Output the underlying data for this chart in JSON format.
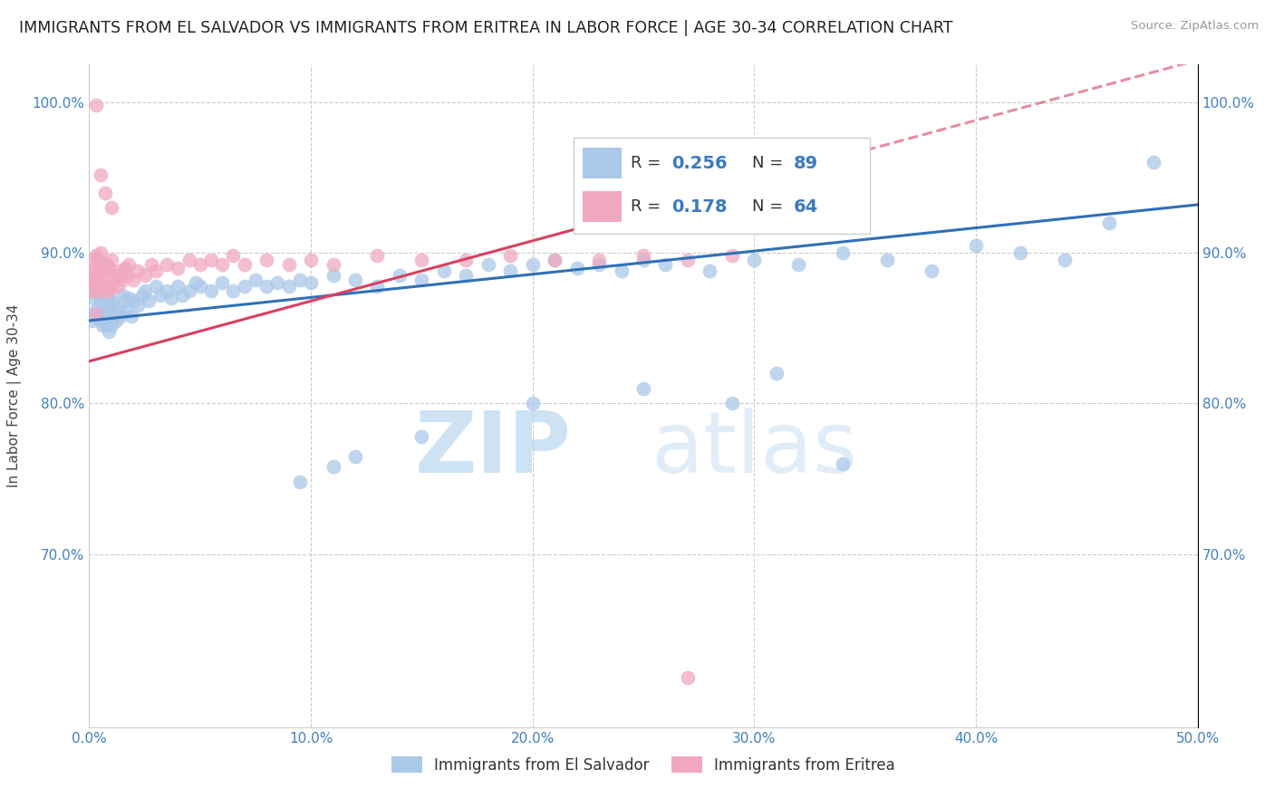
{
  "title": "IMMIGRANTS FROM EL SALVADOR VS IMMIGRANTS FROM ERITREA IN LABOR FORCE | AGE 30-34 CORRELATION CHART",
  "source": "Source: ZipAtlas.com",
  "ylabel": "In Labor Force | Age 30-34",
  "watermark_zip": "ZIP",
  "watermark_atlas": "atlas",
  "xmin": 0.0,
  "xmax": 0.5,
  "ymin": 0.585,
  "ymax": 1.025,
  "xticks": [
    0.0,
    0.1,
    0.2,
    0.3,
    0.4,
    0.5
  ],
  "xticklabels": [
    "0.0%",
    "10.0%",
    "20.0%",
    "30.0%",
    "40.0%",
    "50.0%"
  ],
  "yticks": [
    0.7,
    0.8,
    0.9,
    1.0
  ],
  "yticklabels": [
    "70.0%",
    "80.0%",
    "90.0%",
    "100.0%"
  ],
  "legend_entries": [
    {
      "label": "Immigrants from El Salvador",
      "R": "0.256",
      "N": "89",
      "color": "#aac8e8",
      "line_color": "#3070b8"
    },
    {
      "label": "Immigrants from Eritrea",
      "R": "0.178",
      "N": "64",
      "color": "#f0a8c0",
      "line_color": "#d84060"
    }
  ],
  "sal_x": [
    0.001,
    0.002,
    0.002,
    0.003,
    0.003,
    0.004,
    0.004,
    0.005,
    0.005,
    0.006,
    0.006,
    0.007,
    0.007,
    0.008,
    0.008,
    0.009,
    0.009,
    0.01,
    0.01,
    0.011,
    0.011,
    0.012,
    0.013,
    0.014,
    0.015,
    0.016,
    0.017,
    0.018,
    0.019,
    0.02,
    0.022,
    0.024,
    0.025,
    0.027,
    0.03,
    0.032,
    0.035,
    0.037,
    0.04,
    0.042,
    0.045,
    0.048,
    0.05,
    0.055,
    0.06,
    0.065,
    0.07,
    0.075,
    0.08,
    0.085,
    0.09,
    0.095,
    0.1,
    0.11,
    0.12,
    0.13,
    0.14,
    0.15,
    0.16,
    0.17,
    0.18,
    0.19,
    0.2,
    0.21,
    0.22,
    0.23,
    0.24,
    0.25,
    0.26,
    0.28,
    0.3,
    0.32,
    0.34,
    0.36,
    0.38,
    0.4,
    0.42,
    0.44,
    0.46,
    0.34,
    0.29,
    0.31,
    0.25,
    0.2,
    0.15,
    0.12,
    0.11,
    0.095,
    0.48
  ],
  "sal_y": [
    0.855,
    0.858,
    0.87,
    0.862,
    0.875,
    0.86,
    0.878,
    0.855,
    0.868,
    0.852,
    0.872,
    0.858,
    0.865,
    0.852,
    0.87,
    0.848,
    0.862,
    0.852,
    0.868,
    0.858,
    0.865,
    0.855,
    0.862,
    0.858,
    0.872,
    0.868,
    0.862,
    0.87,
    0.858,
    0.868,
    0.865,
    0.872,
    0.875,
    0.868,
    0.878,
    0.872,
    0.875,
    0.87,
    0.878,
    0.872,
    0.875,
    0.88,
    0.878,
    0.875,
    0.88,
    0.875,
    0.878,
    0.882,
    0.878,
    0.88,
    0.878,
    0.882,
    0.88,
    0.885,
    0.882,
    0.878,
    0.885,
    0.882,
    0.888,
    0.885,
    0.892,
    0.888,
    0.892,
    0.895,
    0.89,
    0.892,
    0.888,
    0.895,
    0.892,
    0.888,
    0.895,
    0.892,
    0.9,
    0.895,
    0.888,
    0.905,
    0.9,
    0.895,
    0.92,
    0.76,
    0.8,
    0.82,
    0.81,
    0.8,
    0.778,
    0.765,
    0.758,
    0.748,
    0.96
  ],
  "eri_x": [
    0.001,
    0.001,
    0.002,
    0.002,
    0.002,
    0.003,
    0.003,
    0.003,
    0.004,
    0.004,
    0.004,
    0.005,
    0.005,
    0.005,
    0.006,
    0.006,
    0.007,
    0.007,
    0.008,
    0.008,
    0.009,
    0.009,
    0.01,
    0.01,
    0.011,
    0.012,
    0.013,
    0.014,
    0.015,
    0.016,
    0.017,
    0.018,
    0.02,
    0.022,
    0.025,
    0.028,
    0.03,
    0.035,
    0.04,
    0.045,
    0.05,
    0.055,
    0.06,
    0.065,
    0.07,
    0.08,
    0.09,
    0.1,
    0.11,
    0.13,
    0.15,
    0.17,
    0.19,
    0.21,
    0.23,
    0.25,
    0.27,
    0.29,
    0.01,
    0.007,
    0.005,
    0.003,
    0.003,
    0.27
  ],
  "eri_y": [
    0.875,
    0.882,
    0.878,
    0.888,
    0.895,
    0.882,
    0.89,
    0.898,
    0.875,
    0.885,
    0.895,
    0.878,
    0.888,
    0.9,
    0.882,
    0.892,
    0.875,
    0.888,
    0.878,
    0.892,
    0.875,
    0.89,
    0.878,
    0.895,
    0.882,
    0.885,
    0.878,
    0.888,
    0.882,
    0.89,
    0.885,
    0.892,
    0.882,
    0.888,
    0.885,
    0.892,
    0.888,
    0.892,
    0.89,
    0.895,
    0.892,
    0.895,
    0.892,
    0.898,
    0.892,
    0.895,
    0.892,
    0.895,
    0.892,
    0.898,
    0.895,
    0.895,
    0.898,
    0.895,
    0.895,
    0.898,
    0.895,
    0.898,
    0.93,
    0.94,
    0.952,
    0.998,
    0.86,
    0.618
  ],
  "sal_trend_x": [
    0.0,
    0.5
  ],
  "sal_trend_y": [
    0.855,
    0.932
  ],
  "eri_trend_x": [
    0.0,
    0.28
  ],
  "eri_trend_y": [
    0.828,
    0.94
  ]
}
